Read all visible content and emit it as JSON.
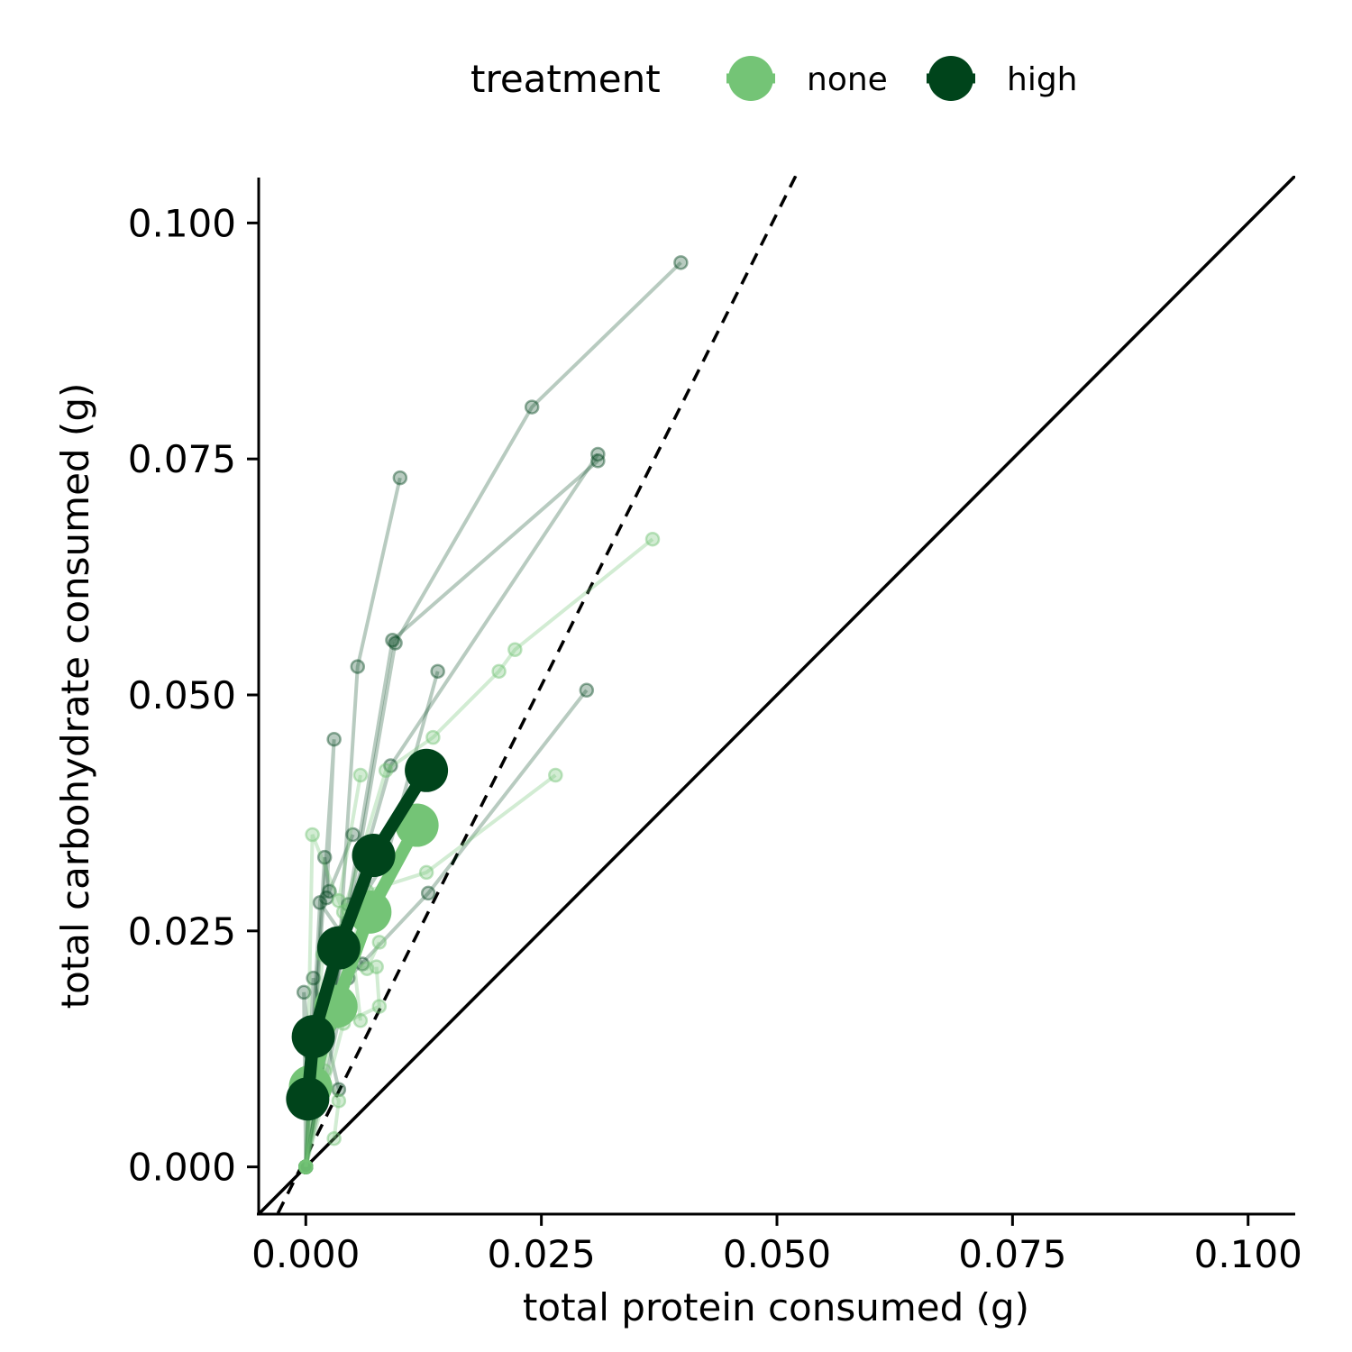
{
  "chart_data": {
    "type": "line",
    "xlabel": "total protein consumed  (g)",
    "ylabel": "total carbohydrate consumed (g)",
    "xlim": [
      -0.005,
      0.105
    ],
    "ylim": [
      -0.005,
      0.105
    ],
    "x_ticks": [
      "0.000",
      "0.025",
      "0.050",
      "0.075",
      "0.100"
    ],
    "y_ticks": [
      "0.000",
      "0.025",
      "0.050",
      "0.075",
      "0.100"
    ],
    "x_tick_values": [
      0,
      0.025,
      0.05,
      0.075,
      0.1
    ],
    "y_tick_values": [
      0,
      0.025,
      0.05,
      0.075,
      0.1
    ],
    "grid": false,
    "legend": {
      "title": "treatment",
      "position": "top",
      "entries": [
        {
          "label": "none",
          "color": "#74c476"
        },
        {
          "label": "high",
          "color": "#00441b"
        }
      ]
    },
    "reference_lines": [
      {
        "style": "solid",
        "slope": 1,
        "intercept": 0
      },
      {
        "style": "dashed",
        "slope": 2,
        "intercept": 0.001
      }
    ],
    "individual_series": [
      {
        "group": "high",
        "points": [
          [
            0,
            0
          ],
          [
            0.0025,
            0.015
          ],
          [
            0.0095,
            0.0555
          ],
          [
            0.024,
            0.0805
          ],
          [
            0.0398,
            0.0958
          ]
        ]
      },
      {
        "group": "high",
        "points": [
          [
            0,
            0
          ],
          [
            0.0035,
            0.022
          ],
          [
            0.0055,
            0.053
          ],
          [
            0.01,
            0.073
          ]
        ]
      },
      {
        "group": "high",
        "points": [
          [
            0,
            0
          ],
          [
            0.004,
            0.025
          ],
          [
            0.009,
            0.0425
          ],
          [
            0.031,
            0.0755
          ]
        ]
      },
      {
        "group": "high",
        "points": [
          [
            0,
            0
          ],
          [
            0.003,
            0.0182
          ],
          [
            0.0045,
            0.0278
          ],
          [
            0.0092,
            0.0558
          ],
          [
            0.031,
            0.0748
          ]
        ]
      },
      {
        "group": "high",
        "points": [
          [
            0,
            0
          ],
          [
            0.0045,
            0.026
          ],
          [
            0.0085,
            0.0325
          ],
          [
            0.014,
            0.0525
          ]
        ]
      },
      {
        "group": "high",
        "points": [
          [
            0,
            0
          ],
          [
            0.003,
            0.0453
          ],
          [
            0.0022,
            0.0285
          ]
        ]
      },
      {
        "group": "high",
        "points": [
          [
            0,
            0
          ],
          [
            0.0045,
            0.02
          ],
          [
            0.013,
            0.029
          ],
          [
            0.0298,
            0.0505
          ]
        ]
      },
      {
        "group": "high",
        "points": [
          [
            0,
            0
          ],
          [
            0.002,
            0.0328
          ],
          [
            0.0025,
            0.0292
          ],
          [
            0.005,
            0.0352
          ]
        ]
      },
      {
        "group": "high",
        "points": [
          [
            0,
            0
          ],
          [
            0.0015,
            0.028
          ],
          [
            0.006,
            0.0215
          ]
        ]
      },
      {
        "group": "high",
        "points": [
          [
            0,
            0
          ],
          [
            0.0008,
            0.02
          ],
          [
            0.0035,
            0.0082
          ]
        ]
      },
      {
        "group": "high",
        "points": [
          [
            0,
            0
          ],
          [
            -0.0002,
            0.0185
          ],
          [
            0.0005,
            0.012
          ]
        ]
      },
      {
        "group": "none",
        "points": [
          [
            0,
            0
          ],
          [
            0.002,
            0.016
          ],
          [
            0.004,
            0.027
          ],
          [
            0.0085,
            0.042
          ],
          [
            0.0135,
            0.0455
          ],
          [
            0.0205,
            0.0525
          ],
          [
            0.0222,
            0.0548
          ],
          [
            0.0368,
            0.0665
          ]
        ]
      },
      {
        "group": "none",
        "points": [
          [
            0,
            0
          ],
          [
            0.0007,
            0.0352
          ],
          [
            0.0035,
            0.0282
          ],
          [
            0.0058,
            0.0415
          ]
        ]
      },
      {
        "group": "none",
        "points": [
          [
            0,
            0
          ],
          [
            0.0035,
            0.018
          ],
          [
            0.0065,
            0.0292
          ],
          [
            0.0128,
            0.0312
          ],
          [
            0.0265,
            0.0415
          ]
        ]
      },
      {
        "group": "none",
        "points": [
          [
            0,
            0
          ],
          [
            0.004,
            0.0152
          ],
          [
            0.0078,
            0.017
          ],
          [
            0.0075,
            0.0212
          ]
        ]
      },
      {
        "group": "none",
        "points": [
          [
            0,
            0
          ],
          [
            0.002,
            0.0102
          ],
          [
            0.0035,
            0.007
          ],
          [
            0.003,
            0.003
          ]
        ]
      },
      {
        "group": "none",
        "points": [
          [
            0,
            0
          ],
          [
            0.0018,
            0.0225
          ],
          [
            0.0065,
            0.021
          ],
          [
            0.0078,
            0.0238
          ]
        ]
      },
      {
        "group": "none",
        "points": [
          [
            0,
            0
          ],
          [
            0.0005,
            0.0072
          ],
          [
            0.0045,
            0.0272
          ],
          [
            0.0058,
            0.0155
          ]
        ]
      }
    ],
    "series": [
      {
        "name": "none",
        "color": "#74c476",
        "x": [
          0.0005,
          0.0032,
          0.0068,
          0.0118
        ],
        "y": [
          0.0085,
          0.017,
          0.027,
          0.0362
        ]
      },
      {
        "name": "high",
        "color": "#00441b",
        "x": [
          0.0002,
          0.0008,
          0.0035,
          0.0072,
          0.0128
        ],
        "y": [
          0.0072,
          0.0138,
          0.0232,
          0.033,
          0.042
        ]
      }
    ]
  }
}
